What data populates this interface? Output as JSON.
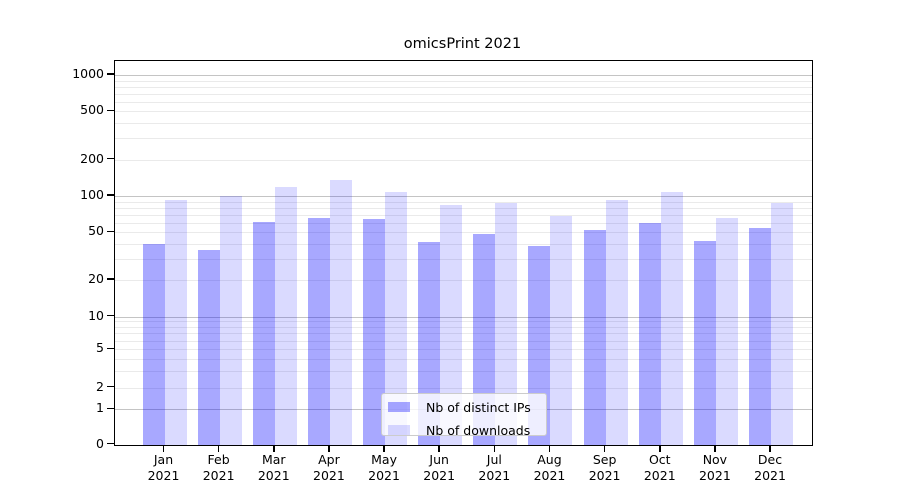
{
  "chart_data": {
    "type": "bar",
    "title": "omicsPrint 2021",
    "categories": [
      "Jan 2021",
      "Feb 2021",
      "Mar 2021",
      "Apr 2021",
      "May 2021",
      "Jun 2021",
      "Jul 2021",
      "Aug 2021",
      "Sep 2021",
      "Oct 2021",
      "Nov 2021",
      "Dec 2021"
    ],
    "series": [
      {
        "name": "Nb of distinct IPs",
        "color": "rgba(0,0,255,0.34)",
        "values": [
          40,
          36,
          61,
          66,
          65,
          42,
          49,
          39,
          53,
          60,
          43,
          55
        ]
      },
      {
        "name": "Nb of downloads",
        "color": "rgba(0,0,255,0.145)",
        "values": [
          93,
          101,
          119,
          138,
          110,
          85,
          88,
          69,
          94,
          110,
          66,
          89
        ]
      }
    ],
    "xlabel": "",
    "ylabel": "",
    "yscale": "symlog",
    "y_ticks": [
      0,
      1,
      2,
      5,
      10,
      20,
      50,
      100,
      200,
      500,
      1000
    ],
    "ylim": [
      0,
      1300
    ],
    "grid": "both",
    "legend_position": "lower center"
  },
  "colors": {
    "major_grid": "#c4c4c4",
    "minor_grid": "#eaeaea",
    "spine": "#000000",
    "background": "#ffffff"
  }
}
